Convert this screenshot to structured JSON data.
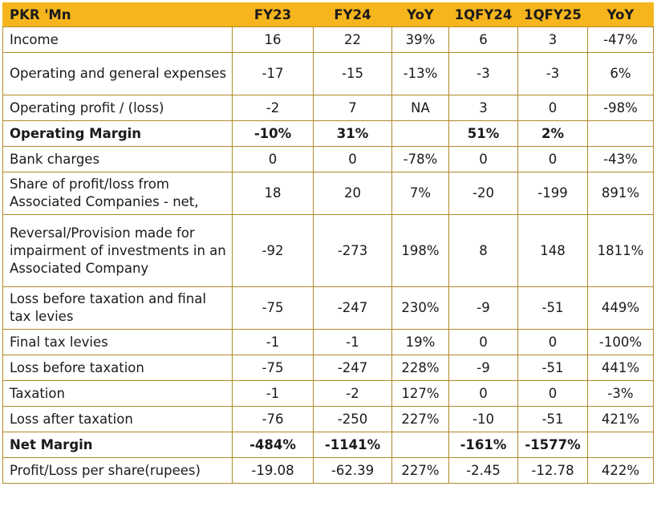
{
  "table": {
    "headers": [
      "PKR 'Mn",
      "FY23",
      "FY24",
      "YoY",
      "1QFY24",
      "1QFY25",
      "YoY"
    ],
    "rows": [
      {
        "label": "Income",
        "values": [
          "16",
          "22",
          "39%",
          "6",
          "3",
          "-47%"
        ],
        "bold": false
      },
      {
        "label": "Operating and general expenses",
        "values": [
          "-17",
          "-15",
          "-13%",
          "-3",
          "-3",
          "6%"
        ],
        "bold": false
      },
      {
        "label": "Operating profit / (loss)",
        "values": [
          "-2",
          "7",
          "NA",
          "3",
          "0",
          "-98%"
        ],
        "bold": false
      },
      {
        "label": "Operating Margin",
        "values": [
          "-10%",
          "31%",
          "",
          "51%",
          "2%",
          ""
        ],
        "bold": true
      },
      {
        "label": "Bank charges",
        "values": [
          "0",
          "0",
          "-78%",
          "0",
          "0",
          "-43%"
        ],
        "bold": false
      },
      {
        "label": "Share of profit/loss from Associated Companies - net,",
        "values": [
          "18",
          "20",
          "7%",
          "-20",
          "-199",
          "891%"
        ],
        "bold": false
      },
      {
        "label": "Reversal/Provision made for impairment of investments in an Associated Company",
        "values": [
          "-92",
          "-273",
          "198%",
          "8",
          "148",
          "1811%"
        ],
        "bold": false
      },
      {
        "label": "Loss before taxation and final tax levies",
        "values": [
          "-75",
          "-247",
          "230%",
          "-9",
          "-51",
          "449%"
        ],
        "bold": false
      },
      {
        "label": "Final tax levies",
        "values": [
          "-1",
          "-1",
          "19%",
          "0",
          "0",
          "-100%"
        ],
        "bold": false
      },
      {
        "label": "Loss before taxation",
        "values": [
          "-75",
          "-247",
          "228%",
          "-9",
          "-51",
          "441%"
        ],
        "bold": false
      },
      {
        "label": "Taxation",
        "values": [
          "-1",
          "-2",
          "127%",
          "0",
          "0",
          "-3%"
        ],
        "bold": false
      },
      {
        "label": "Loss after taxation",
        "values": [
          "-76",
          "-250",
          "227%",
          "-10",
          "-51",
          "421%"
        ],
        "bold": false
      },
      {
        "label": "Net Margin",
        "values": [
          "-484%",
          "-1141%",
          "",
          "-161%",
          "-1577%",
          ""
        ],
        "bold": true
      },
      {
        "label": "Profit/Loss per share(rupees)",
        "values": [
          "-19.08",
          "-62.39",
          "227%",
          "-2.45",
          "-12.78",
          "422%"
        ],
        "bold": false
      }
    ]
  },
  "colors": {
    "header_background": "#f6b51d",
    "border": "#b08a2a",
    "text": "#1a1a1a"
  }
}
